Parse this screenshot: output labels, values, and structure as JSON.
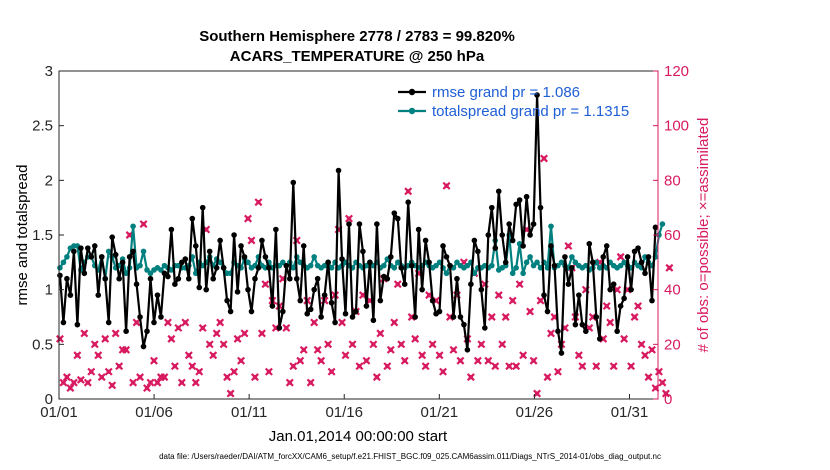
{
  "chart_data": {
    "type": "line",
    "title_line1": "Southern Hemisphere 2778 / 2783 = 99.820%",
    "title_line2": "ACARS_TEMPERATURE @ 250 hPa",
    "ylabel_left": "rmse and totalspread",
    "ylabel_right": "# of obs: o=possible; ×=assimilated",
    "xlabel": "Jan.01,2014 00:00:00 start",
    "footnote": "data file: /Users/raeder/DAI/ATM_forcXX/CAM6_setup/f.e21.FHIST_BGC.f09_025.CAM6assim.011/Diags_NTrS_2014-01/obs_diag_output.nc",
    "ylim_left": [
      0,
      3
    ],
    "ylim_right": [
      0,
      120
    ],
    "yticks_left": [
      "0",
      "0.5",
      "1",
      "1.5",
      "2",
      "2.5",
      "3"
    ],
    "yticks_right": [
      "0",
      "20",
      "40",
      "60",
      "80",
      "100",
      "120"
    ],
    "xlim_days": [
      0,
      31.5
    ],
    "xticks": [
      {
        "day": 0,
        "label": "01/01"
      },
      {
        "day": 5,
        "label": "01/06"
      },
      {
        "day": 10,
        "label": "01/11"
      },
      {
        "day": 15,
        "label": "01/16"
      },
      {
        "day": 20,
        "label": "01/21"
      },
      {
        "day": 25,
        "label": "01/26"
      },
      {
        "day": 30,
        "label": "01/31"
      }
    ],
    "colors": {
      "rmse": "#000000",
      "spread": "#00807f",
      "obs": "#d81b60",
      "legend_text": "#1f5fd6",
      "right_axis": "#d81b60"
    },
    "legend": [
      {
        "key": "rmse",
        "label": "rmse grand pr = 1.086"
      },
      {
        "key": "spread",
        "label": "totalspread grand pr = 1.1315"
      }
    ],
    "series": [
      {
        "name": "rmse",
        "values": [
          1.13,
          0.7,
          1.1,
          0.95,
          1.35,
          0.68,
          1.38,
          1.15,
          1.38,
          1.3,
          1.4,
          0.95,
          1.3,
          1.1,
          0.7,
          1.48,
          1.32,
          1.1,
          1.25,
          0.62,
          1.3,
          1.35,
          1.05,
          0.75,
          0.48,
          0.62,
          1.1,
          0.7,
          0.95,
          0.75,
          1.15,
          1.12,
          1.55,
          1.05,
          1.1,
          1.25,
          1.28,
          1.1,
          1.65,
          1.4,
          1.02,
          1.75,
          1.0,
          1.35,
          1.1,
          1.2,
          1.45,
          1.2,
          0.9,
          0.8,
          1.5,
          0.98,
          1.4,
          1.3,
          1.0,
          0.8,
          1.1,
          1.2,
          1.45,
          1.3,
          1.2,
          0.85,
          1.55,
          0.65,
          0.8,
          1.22,
          1.1,
          1.98,
          1.1,
          0.9,
          1.4,
          0.78,
          0.82,
          1.0,
          1.1,
          0.75,
          0.95,
          1.25,
          0.88,
          0.7,
          2.09,
          1.28,
          0.78,
          1.6,
          0.75,
          0.8,
          1.6,
          1.35,
          0.85,
          1.25,
          0.72,
          1.6,
          0.9,
          1.12,
          1.1,
          1.3,
          1.7,
          1.65,
          1.2,
          1.05,
          1.8,
          1.22,
          0.75,
          1.55,
          1.0,
          1.45,
          1.25,
          0.9,
          0.78,
          0.8,
          1.4,
          1.3,
          1.22,
          0.75,
          1.1,
          0.75,
          0.68,
          0.45,
          1.05,
          1.45,
          1.35,
          1.0,
          0.65,
          1.5,
          1.75,
          1.38,
          1.9,
          1.5,
          1.25,
          1.6,
          1.45,
          1.78,
          1.82,
          1.4,
          1.85,
          1.5,
          1.6,
          2.78,
          1.75,
          0.95,
          0.8,
          1.4,
          1.22,
          0.62,
          0.42,
          1.3,
          1.05,
          1.2,
          0.68,
          0.95,
          0.68,
          0.62,
          1.42,
          1.25,
          0.75,
          0.55,
          1.3,
          1.4,
          1.0,
          1.05,
          0.62,
          0.85,
          0.92,
          1.3,
          1.0,
          1.35,
          1.38,
          1.25,
          1.15,
          1.3,
          0.9,
          1.57
        ]
      },
      {
        "name": "totalspread",
        "values": [
          1.2,
          1.25,
          1.3,
          1.38,
          1.4,
          1.4,
          1.18,
          1.25,
          1.3,
          1.3,
          1.22,
          1.18,
          1.3,
          1.1,
          1.35,
          1.3,
          1.2,
          1.22,
          1.28,
          1.15,
          1.2,
          1.58,
          1.2,
          1.22,
          1.35,
          1.18,
          1.15,
          1.18,
          1.2,
          1.18,
          1.22,
          1.2,
          1.18,
          1.22,
          1.22,
          1.2,
          1.2,
          1.22,
          1.3,
          1.15,
          1.25,
          1.22,
          1.25,
          1.3,
          1.22,
          1.28,
          1.25,
          1.2,
          1.15,
          1.15,
          1.25,
          1.22,
          1.2,
          1.28,
          1.25,
          1.2,
          1.22,
          1.3,
          1.22,
          1.2,
          1.25,
          1.2,
          1.22,
          1.22,
          1.25,
          1.22,
          1.25,
          1.2,
          1.3,
          1.25,
          1.22,
          1.2,
          1.22,
          1.3,
          1.22,
          1.2,
          1.22,
          1.25,
          1.2,
          1.25,
          1.2,
          1.22,
          1.25,
          1.22,
          1.2,
          1.25,
          1.22,
          1.2,
          1.22,
          1.25,
          1.22,
          1.25,
          1.2,
          1.22,
          1.28,
          1.22,
          1.2,
          1.25,
          1.22,
          1.2,
          1.22,
          1.25,
          1.22,
          1.2,
          1.22,
          1.25,
          1.22,
          1.2,
          1.22,
          1.25,
          1.2,
          1.15,
          1.22,
          1.2,
          1.25,
          1.22,
          1.2,
          1.22,
          1.25,
          1.15,
          1.2,
          1.2,
          1.22,
          1.2,
          1.22,
          1.45,
          1.18,
          1.2,
          1.22,
          1.5,
          1.15,
          1.2,
          1.42,
          1.15,
          1.25,
          1.3,
          1.22,
          1.25,
          1.2,
          1.25,
          1.2,
          1.58,
          1.2,
          1.22,
          1.25,
          1.22,
          1.2,
          1.3,
          1.25,
          1.22,
          1.2,
          1.22,
          1.18,
          1.2,
          1.25,
          1.2,
          1.22,
          1.2,
          1.25,
          1.22,
          1.2,
          1.22,
          1.25,
          1.22,
          1.2,
          1.25,
          1.22,
          1.2,
          1.3,
          1.25,
          1.22,
          1.3,
          1.5,
          1.6
        ]
      },
      {
        "name": "obs_possible_assimilated",
        "values": [
          22,
          6,
          8,
          4,
          6,
          16,
          7,
          24,
          6,
          10,
          20,
          16,
          8,
          22,
          10,
          5,
          24,
          12,
          18,
          18,
          60,
          6,
          28,
          8,
          64,
          4,
          6,
          14,
          6,
          8,
          8,
          28,
          22,
          12,
          26,
          6,
          28,
          16,
          12,
          6,
          10,
          26,
          62,
          20,
          16,
          24,
          28,
          20,
          8,
          2,
          10,
          22,
          14,
          24,
          66,
          58,
          8,
          72,
          24,
          42,
          10,
          36,
          26,
          34,
          44,
          26,
          6,
          12,
          58,
          14,
          18,
          36,
          6,
          28,
          18,
          14,
          36,
          20,
          10,
          38,
          62,
          28,
          16,
          66,
          20,
          32,
          12,
          38,
          14,
          36,
          20,
          8,
          24,
          44,
          12,
          18,
          28,
          42,
          20,
          14,
          76,
          30,
          22,
          46,
          16,
          12,
          38,
          20,
          36,
          16,
          10,
          78,
          30,
          18,
          38,
          14,
          50,
          22,
          8,
          46,
          14,
          20,
          42,
          14,
          30,
          12,
          38,
          20,
          30,
          12,
          36,
          12,
          42,
          16,
          62,
          32,
          14,
          2,
          36,
          88,
          8,
          24,
          30,
          10,
          20,
          26,
          56,
          48,
          30,
          16,
          12,
          40,
          26,
          30,
          12,
          50,
          22,
          34,
          28,
          12,
          40,
          52,
          22,
          40,
          12,
          30,
          34,
          20,
          16,
          8,
          18,
          4,
          10,
          6,
          2,
          48
        ]
      }
    ]
  }
}
